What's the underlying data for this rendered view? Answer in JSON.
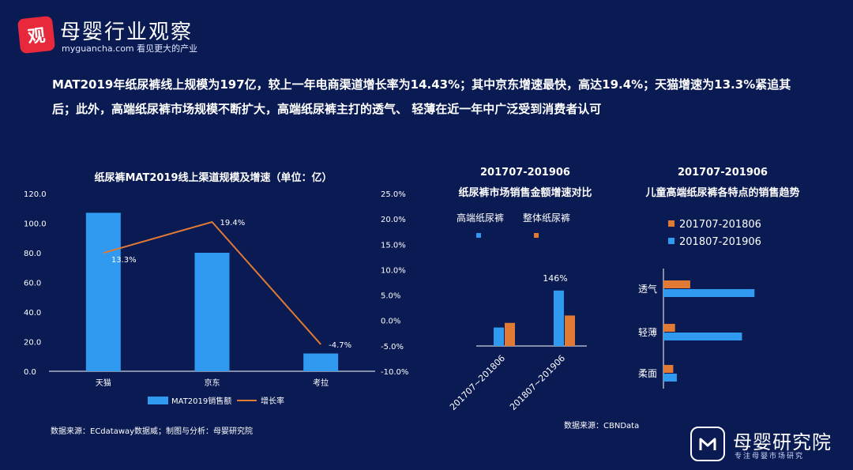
{
  "brand": {
    "logo_char": "观",
    "name": "母婴行业观察",
    "site": "myguancha.com 看见更大的产业"
  },
  "headline": "MAT2019年纸尿裤线上规模为197亿，较上一年电商渠道增长率为14.43%；其中京东增速最快，高达19.4%；天猫增速为13.3%紧追其后；此外，高端纸尿裤市场规模不断扩大，高端纸尿裤主打的透气、 轻薄在近一年中广泛受到消费者认可",
  "footer": {
    "name": "母婴研究院",
    "tagline": "专注母婴市场研究"
  },
  "colors": {
    "background": "#0a1a52",
    "blue": "#2f9af0",
    "orange": "#e07a35",
    "axis": "#ffffff"
  },
  "chart_data": [
    {
      "type": "bar",
      "title": "纸尿裤MAT2019线上渠道规模及增速（单位：亿）",
      "categories": [
        "天猫",
        "京东",
        "考拉"
      ],
      "series": [
        {
          "name": "MAT2019销售额",
          "type": "bar",
          "axis": "left",
          "values": [
            107,
            80,
            12
          ]
        },
        {
          "name": "增长率",
          "type": "line",
          "axis": "right",
          "values": [
            13.3,
            19.4,
            -4.7
          ],
          "labels": [
            "13.3%",
            "19.4%",
            "-4.7%"
          ]
        }
      ],
      "ylim": [
        0,
        120
      ],
      "yticks": [
        "0.0",
        "20.0",
        "40.0",
        "60.0",
        "80.0",
        "100.0",
        "120.0"
      ],
      "y2lim": [
        -10,
        25
      ],
      "y2ticks": [
        "-10.0%",
        "-5.0%",
        "0.0%",
        "5.0%",
        "10.0%",
        "15.0%",
        "20.0%",
        "25.0%"
      ],
      "legend": "bottom",
      "source": "数据来源：ECdataway数据威；制图与分析：母婴研究院"
    },
    {
      "type": "bar",
      "title": "201707-201906",
      "subtitle": "纸尿裤市场销售金额增速对比",
      "categories": [
        "201707~201806",
        "201807~201906"
      ],
      "series": [
        {
          "name": "高端纸尿裤",
          "color": "blue",
          "values": [
            2,
            6
          ]
        },
        {
          "name": "整体纸尿裤",
          "color": "orange",
          "values": [
            2.5,
            3.3
          ]
        }
      ],
      "annotation": "146%",
      "legend": "top"
    },
    {
      "type": "bar",
      "orientation": "horizontal",
      "title": "201707-201906",
      "subtitle": "儿童高端纸尿裤各特点的销售趋势",
      "categories": [
        "透气",
        "轻薄",
        "柔面"
      ],
      "series": [
        {
          "name": "201707-201806",
          "color": "orange",
          "values": [
            3.0,
            1.3,
            1.1
          ]
        },
        {
          "name": "201807-201906",
          "color": "blue",
          "values": [
            10.2,
            8.8,
            1.5
          ]
        }
      ],
      "legend": "top",
      "source": "数据来源：CBNData"
    }
  ]
}
